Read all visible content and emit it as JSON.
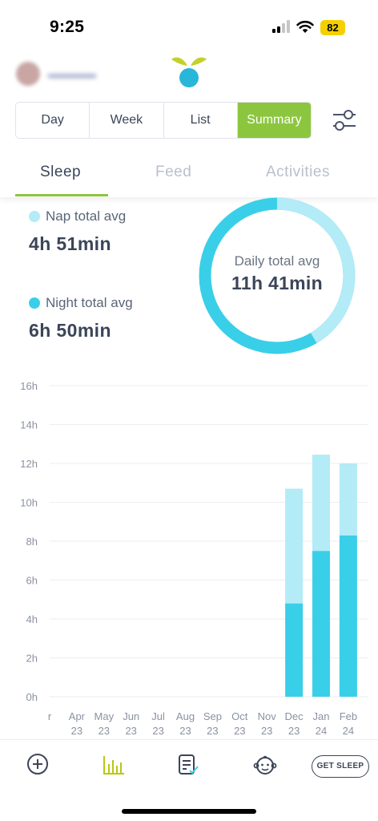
{
  "status_bar": {
    "time": "9:25",
    "battery": "82"
  },
  "colors": {
    "accent": "#8cc63f",
    "nap": "#b3ebf7",
    "night": "#3acfe8",
    "text": "#3b4558"
  },
  "segments": [
    {
      "label": "Day",
      "active": false
    },
    {
      "label": "Week",
      "active": false
    },
    {
      "label": "List",
      "active": false
    },
    {
      "label": "Summary",
      "active": true
    }
  ],
  "tabs": [
    {
      "label": "Sleep",
      "active": true
    },
    {
      "label": "Feed",
      "active": false
    },
    {
      "label": "Activities",
      "active": false
    }
  ],
  "summary": {
    "nap_label": "Nap total avg",
    "nap_value": "4h 51min",
    "night_label": "Night total avg",
    "night_value": "6h 50min",
    "daily_label": "Daily total avg",
    "daily_value": "11h 41min",
    "nap_fraction": 0.415
  },
  "chart_data": {
    "type": "bar",
    "stacked": true,
    "x_ticks": [
      [
        "r",
        ""
      ],
      [
        "Apr",
        "23"
      ],
      [
        "May",
        "23"
      ],
      [
        "Jun",
        "23"
      ],
      [
        "Jul",
        "23"
      ],
      [
        "Aug",
        "23"
      ],
      [
        "Sep",
        "23"
      ],
      [
        "Oct",
        "23"
      ],
      [
        "Nov",
        "23"
      ],
      [
        "Dec",
        "23"
      ],
      [
        "Jan",
        "24"
      ],
      [
        "Feb",
        "24"
      ]
    ],
    "y_ticks": [
      "0h",
      "2h",
      "4h",
      "6h",
      "8h",
      "10h",
      "12h",
      "14h",
      "16h"
    ],
    "ylim": [
      0,
      16
    ],
    "grid": true,
    "series": [
      {
        "name": "Night",
        "color": "#3acfe8",
        "values": [
          null,
          null,
          null,
          null,
          null,
          null,
          null,
          null,
          null,
          4.8,
          7.5,
          8.3
        ]
      },
      {
        "name": "Nap",
        "color": "#b3ebf7",
        "values": [
          null,
          null,
          null,
          null,
          null,
          null,
          null,
          null,
          null,
          5.9,
          4.95,
          3.7
        ]
      }
    ]
  },
  "bottom_nav": {
    "items": [
      "add-icon",
      "chart-icon",
      "journal-icon",
      "baby-icon"
    ],
    "get_sleep_label": "GET SLEEP"
  }
}
